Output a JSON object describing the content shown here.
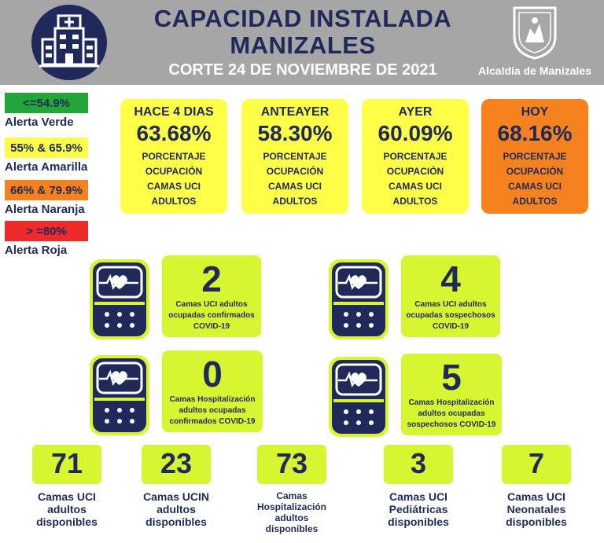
{
  "header": {
    "title_line1": "CAPACIDAD INSTALADA",
    "title_line2": "MANIZALES",
    "subtitle": "CORTE 24 DE NOVIEMBRE  DE 2021",
    "alcaldia": "Alcaldía de Manizales",
    "logo_icon": "hospital-building-icon"
  },
  "legend": [
    {
      "range": "<=54.9%",
      "label": "Alerta Verde",
      "color": "#22a63a"
    },
    {
      "range": "55% & 65.9%",
      "label": "Alerta Amarilla",
      "color": "#ffff47"
    },
    {
      "range": "66% & 79.9%",
      "label": "Alerta Naranja",
      "color": "#f5821f"
    },
    {
      "range": "> =80%",
      "label": "Alerta Roja",
      "color": "#ee2a2a"
    }
  ],
  "occupancy": [
    {
      "period": "HACE 4 DIAS",
      "value": "63.68%",
      "desc": [
        "PORCENTAJE",
        "OCUPACIÓN",
        "CAMAS UCI",
        "ADULTOS"
      ]
    },
    {
      "period": "ANTEAYER",
      "value": "58.30%",
      "desc": [
        "PORCENTAJE",
        "OCUPACIÓN",
        "CAMAS UCI",
        "ADULTOS"
      ]
    },
    {
      "period": "AYER",
      "value": "60.09%",
      "desc": [
        "PORCENTAJE",
        "OCUPACIÓN",
        "CAMAS UCI",
        "ADULTOS"
      ]
    },
    {
      "period": "HOY",
      "value": "68.16%",
      "desc": [
        "PORCENTAJE",
        "OCUPACIÓN",
        "CAMAS UCI",
        "ADULTOS"
      ]
    }
  ],
  "stats": [
    {
      "value": "2",
      "label": [
        "Camas UCI adultos",
        "ocupadas confirmados",
        "COVID-19"
      ]
    },
    {
      "value": "4",
      "label": [
        "Camas UCI adultos",
        "ocupadas sospechosos",
        "COVID-19"
      ]
    },
    {
      "value": "0",
      "label": [
        "Camas  Hospitalización",
        "adultos ocupadas",
        "confirmados COVID-19"
      ]
    },
    {
      "value": "5",
      "label": [
        "Camas  Hospitalización",
        "adultos ocupadas",
        "sospechosos COVID-19"
      ]
    }
  ],
  "available": [
    {
      "value": "71",
      "label": [
        "Camas UCI",
        "adultos",
        "disponibles"
      ]
    },
    {
      "value": "23",
      "label": [
        "Camas UCIN",
        "adultos",
        "disponibles"
      ]
    },
    {
      "value": "73",
      "label": [
        "Camas",
        "Hospitalización",
        "adultos",
        "disponibles"
      ]
    },
    {
      "value": "3",
      "label": [
        "Camas  UCI",
        "Pediátricas",
        "disponibles"
      ]
    },
    {
      "value": "7",
      "label": [
        "Camas  UCI",
        "Neonatales",
        "disponibles"
      ]
    }
  ],
  "colors": {
    "navy": "#1f2a5a",
    "lime": "#d7f631",
    "yellow": "#ffff47",
    "orange": "#f5821f",
    "header_gray": "#a6a6a6"
  },
  "icons": [
    "hospital-building-icon",
    "coat-of-arms-icon",
    "heart-monitor-icon"
  ]
}
